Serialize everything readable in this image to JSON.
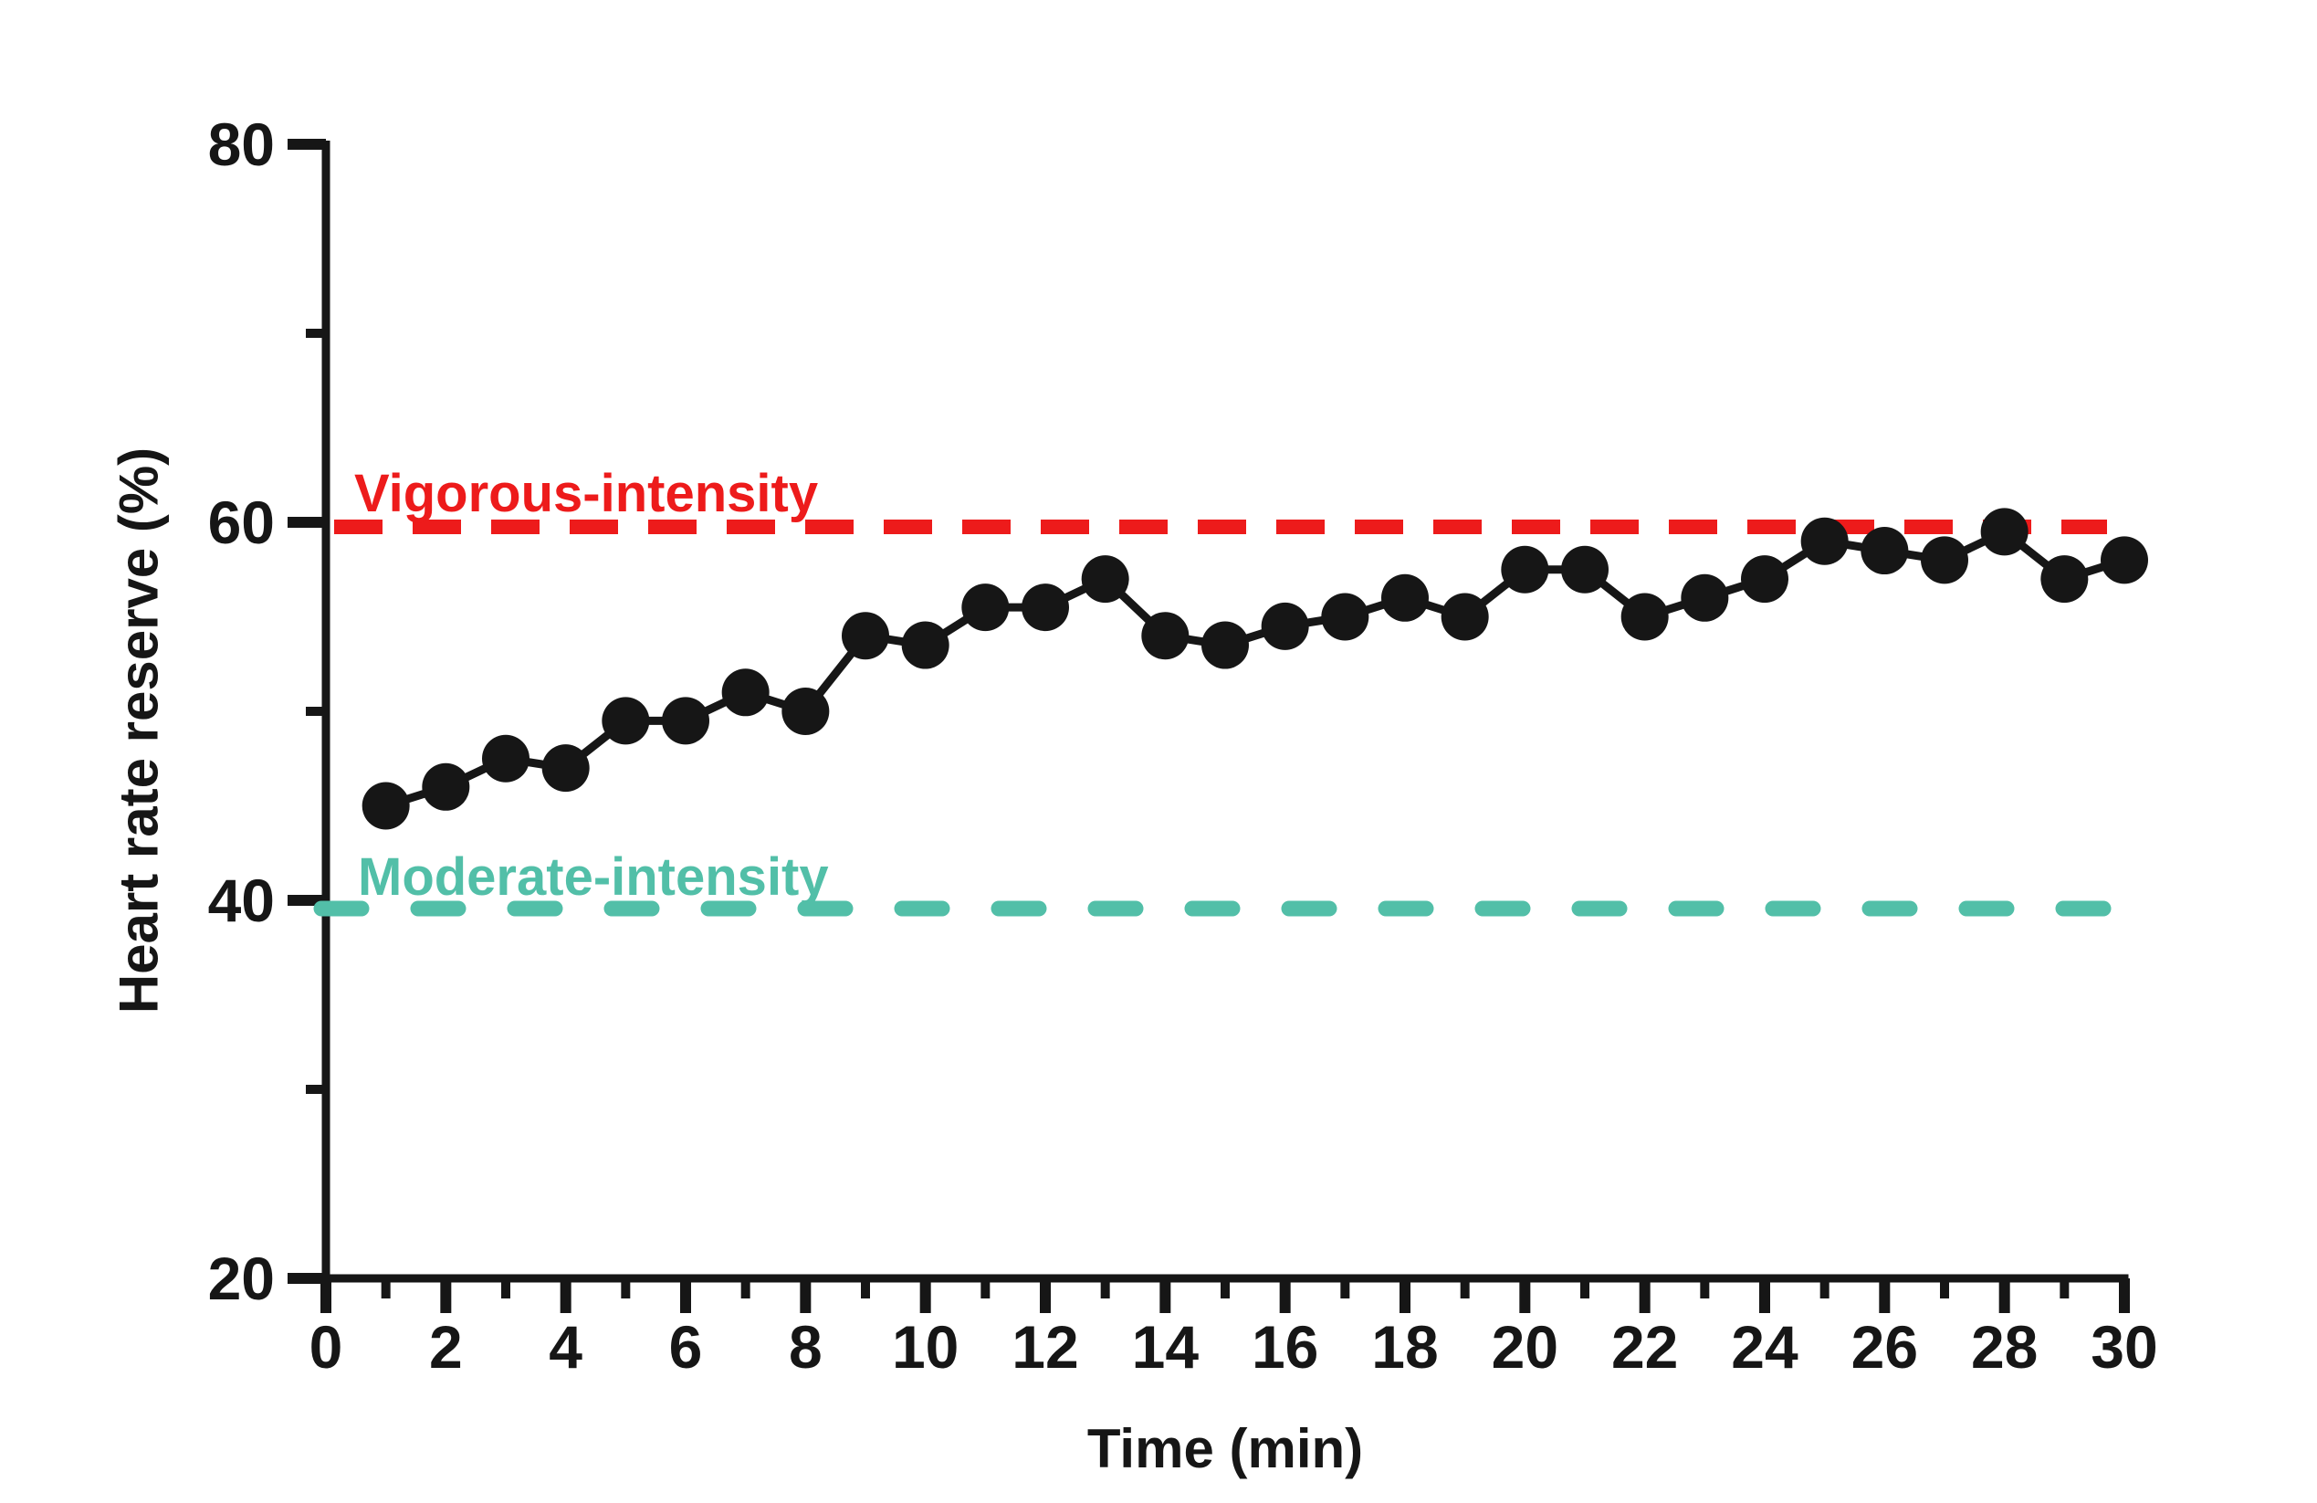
{
  "chart_data": {
    "type": "line",
    "title": "",
    "xlabel": "Time (min)",
    "ylabel": "Heart rate reserve (%)",
    "xlim": [
      0,
      30
    ],
    "ylim": [
      20,
      80
    ],
    "grid": false,
    "legend": false,
    "x": [
      1,
      2,
      3,
      4,
      5,
      6,
      7,
      8,
      9,
      10,
      11,
      12,
      13,
      14,
      15,
      16,
      17,
      18,
      19,
      20,
      21,
      22,
      23,
      24,
      25,
      26,
      27,
      28,
      29,
      30
    ],
    "series": [
      {
        "name": "Heart rate reserve",
        "color": "#161616",
        "marker": "circle",
        "values": [
          45,
          46,
          47.5,
          47,
          49.5,
          49.5,
          51,
          50,
          54,
          53.5,
          55.5,
          55.5,
          57,
          54,
          53.5,
          54.5,
          55,
          56,
          55,
          57.5,
          57.5,
          55,
          56,
          57,
          59,
          58.5,
          58,
          59.5,
          57,
          58
        ]
      }
    ],
    "x_major_ticks": [
      0,
      2,
      4,
      6,
      8,
      10,
      12,
      14,
      16,
      18,
      20,
      22,
      24,
      26,
      28,
      30
    ],
    "x_minor_ticks": [
      1,
      3,
      5,
      7,
      9,
      11,
      13,
      15,
      17,
      19,
      21,
      23,
      25,
      27,
      29
    ],
    "x_tick_labels": [
      "0",
      "2",
      "4",
      "6",
      "8",
      "10",
      "12",
      "14",
      "16",
      "18",
      "20",
      "22",
      "24",
      "26",
      "28",
      "30"
    ],
    "y_major_ticks": [
      20,
      40,
      60,
      80
    ],
    "y_minor_ticks": [
      30,
      50,
      70
    ],
    "y_tick_labels": [
      "20",
      "40",
      "60",
      "80"
    ],
    "reference_lines": [
      {
        "id": "vigorous",
        "label": "Vigorous-intensity",
        "value": 60,
        "color": "#ed1b1b",
        "style": "dashed"
      },
      {
        "id": "moderate",
        "label": "Moderate-intensity",
        "value": 40,
        "color": "#52bfa8",
        "style": "dashed"
      }
    ],
    "axis_color": "#161616",
    "background_color": "#ffffff"
  }
}
